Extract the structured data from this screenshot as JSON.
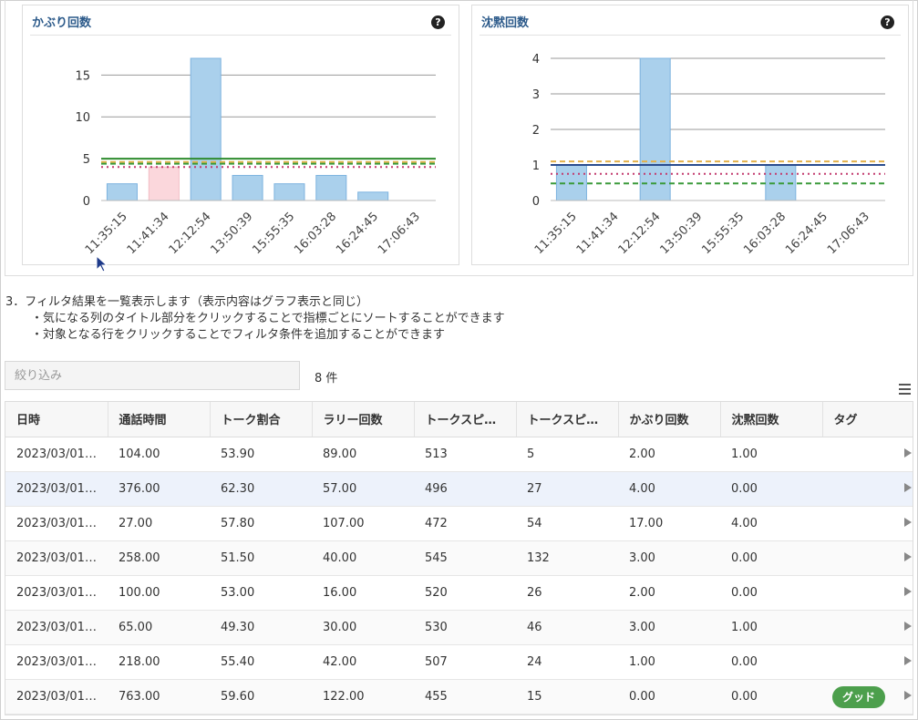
{
  "charts_section": {
    "left": {
      "title": "かぶり回数",
      "help_icon": "question-circle-icon"
    },
    "right": {
      "title": "沈黙回数",
      "help_icon": "question-circle-icon"
    }
  },
  "chart_data": [
    {
      "type": "bar",
      "title": "かぶり回数",
      "categories": [
        "11:35:15",
        "11:41:34",
        "12:12:54",
        "13:50:39",
        "15:55:35",
        "16:03:28",
        "16:24:45",
        "17:06:43"
      ],
      "values": [
        2,
        4,
        17,
        3,
        2,
        3,
        1,
        0
      ],
      "bar_colors": [
        "#aad0ec",
        "#fbd7dc",
        "#aad0ec",
        "#aad0ec",
        "#aad0ec",
        "#aad0ec",
        "#aad0ec",
        "#aad0ec"
      ],
      "ylim": [
        0,
        17
      ],
      "yticks": [
        0,
        5,
        10,
        15
      ],
      "grid": true,
      "reference_lines": [
        {
          "value": 5,
          "color": "#2e8b2e",
          "style": "solid"
        },
        {
          "value": 4.6,
          "color": "#e3b14a",
          "style": "dashed"
        },
        {
          "value": 4.4,
          "color": "#3a9a3a",
          "style": "dashed"
        },
        {
          "value": 4.0,
          "color": "#c23b6e",
          "style": "dotted"
        }
      ]
    },
    {
      "type": "bar",
      "title": "沈黙回数",
      "categories": [
        "11:35:15",
        "11:41:34",
        "12:12:54",
        "13:50:39",
        "15:55:35",
        "16:03:28",
        "16:24:45",
        "17:06:43"
      ],
      "values": [
        1,
        0,
        4,
        0,
        0,
        1,
        0,
        0
      ],
      "bar_colors": [
        "#aad0ec",
        "#aad0ec",
        "#aad0ec",
        "#aad0ec",
        "#aad0ec",
        "#aad0ec",
        "#aad0ec",
        "#aad0ec"
      ],
      "ylim": [
        0,
        4
      ],
      "yticks": [
        0,
        1,
        2,
        3,
        4
      ],
      "grid": true,
      "reference_lines": [
        {
          "value": 1.1,
          "color": "#e3b14a",
          "style": "dashed"
        },
        {
          "value": 1.0,
          "color": "#2a4d8f",
          "style": "solid"
        },
        {
          "value": 0.75,
          "color": "#c23b6e",
          "style": "dotted"
        },
        {
          "value": 0.48,
          "color": "#3a9a3a",
          "style": "dashed"
        }
      ]
    }
  ],
  "description": {
    "heading": "3．フィルタ結果を一覧表示します（表示内容はグラフ表示と同じ）",
    "line1": "・気になる列のタイトル部分をクリックすることで指標ごとにソートすることができます",
    "line2": "・対象となる行をクリックすることでフィルタ条件を追加することができます"
  },
  "filter": {
    "placeholder": "絞り込み",
    "count_label": "8 件",
    "menu_icon": "hamburger-menu-icon"
  },
  "table": {
    "headers": [
      "日時",
      "通話時間",
      "トーク割合",
      "ラリー回数",
      "トークスピード",
      "トークスピ…",
      "かぶり回数",
      "沈黙回数",
      "タグ"
    ],
    "rows": [
      [
        "2023/03/01 …",
        "104.00",
        "53.90",
        "89.00",
        "513",
        "5",
        "2.00",
        "1.00",
        ""
      ],
      [
        "2023/03/01 …",
        "376.00",
        "62.30",
        "57.00",
        "496",
        "27",
        "4.00",
        "0.00",
        ""
      ],
      [
        "2023/03/01 …",
        "27.00",
        "57.80",
        "107.00",
        "472",
        "54",
        "17.00",
        "4.00",
        ""
      ],
      [
        "2023/03/01 …",
        "258.00",
        "51.50",
        "40.00",
        "545",
        "132",
        "3.00",
        "0.00",
        ""
      ],
      [
        "2023/03/01 …",
        "100.00",
        "53.00",
        "16.00",
        "520",
        "26",
        "2.00",
        "0.00",
        ""
      ],
      [
        "2023/03/01 …",
        "65.00",
        "49.30",
        "30.00",
        "530",
        "46",
        "3.00",
        "1.00",
        ""
      ],
      [
        "2023/03/01 …",
        "218.00",
        "55.40",
        "42.00",
        "507",
        "24",
        "1.00",
        "0.00",
        ""
      ],
      [
        "2023/03/01 …",
        "763.00",
        "59.60",
        "122.00",
        "455",
        "15",
        "0.00",
        "0.00",
        "グッド"
      ]
    ],
    "selected_row": 1,
    "tag_color": "#4c9f4c"
  }
}
